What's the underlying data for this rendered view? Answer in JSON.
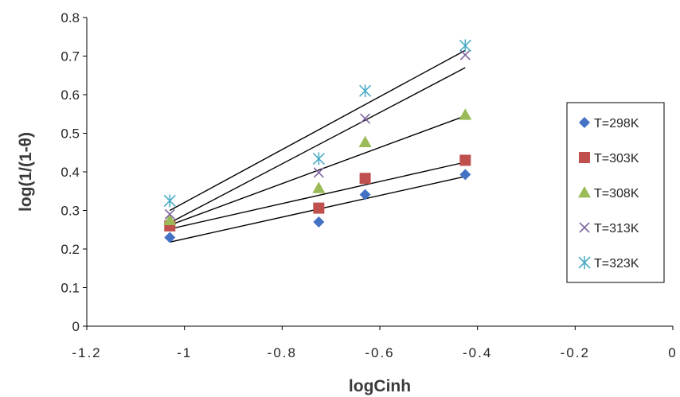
{
  "chart_data": {
    "type": "scatter",
    "title": "",
    "xlabel": "logCinh",
    "ylabel": "log(1/(1-θ)",
    "xlim": [
      -1.2,
      0
    ],
    "ylim": [
      0,
      0.8
    ],
    "xticks": [
      "-1.2",
      "-1",
      "-0.8",
      "-0.6",
      "-0.4",
      "-0.2",
      "0"
    ],
    "yticks": [
      "0",
      "0.1",
      "0.2",
      "0.3",
      "0.4",
      "0.5",
      "0.6",
      "0.7",
      "0.8"
    ],
    "grid": false,
    "legend_position": "right",
    "series": [
      {
        "name": "T=298K",
        "marker": "diamond",
        "color": "#4472C4",
        "x": [
          -1.03,
          -0.725,
          -0.63,
          -0.425
        ],
        "y": [
          0.23,
          0.27,
          0.341,
          0.393
        ],
        "fit": {
          "x": [
            -1.03,
            -0.425
          ],
          "y": [
            0.218,
            0.388
          ]
        }
      },
      {
        "name": "T=303K",
        "marker": "square",
        "color": "#C0504D",
        "x": [
          -1.03,
          -0.725,
          -0.63,
          -0.425
        ],
        "y": [
          0.26,
          0.306,
          0.383,
          0.43
        ],
        "fit": {
          "x": [
            -1.03,
            -0.425
          ],
          "y": [
            0.252,
            0.425
          ]
        }
      },
      {
        "name": "T=308K",
        "marker": "triangle",
        "color": "#9BBB59",
        "x": [
          -1.03,
          -0.725,
          -0.63,
          -0.425
        ],
        "y": [
          0.275,
          0.358,
          0.477,
          0.548
        ],
        "fit": {
          "x": [
            -1.03,
            -0.425
          ],
          "y": [
            0.262,
            0.545
          ]
        }
      },
      {
        "name": "T=313K",
        "marker": "x",
        "color": "#7E64A0",
        "x": [
          -1.03,
          -0.725,
          -0.63,
          -0.425
        ],
        "y": [
          0.29,
          0.398,
          0.538,
          0.703
        ],
        "fit": {
          "x": [
            -1.03,
            -0.425
          ],
          "y": [
            0.268,
            0.67
          ]
        }
      },
      {
        "name": "T=323K",
        "marker": "asterisk",
        "color": "#4BACC6",
        "x": [
          -1.03,
          -0.725,
          -0.63,
          -0.425
        ],
        "y": [
          0.325,
          0.434,
          0.61,
          0.727
        ],
        "fit": {
          "x": [
            -1.03,
            -0.425
          ],
          "y": [
            0.3,
            0.715
          ]
        }
      }
    ]
  }
}
